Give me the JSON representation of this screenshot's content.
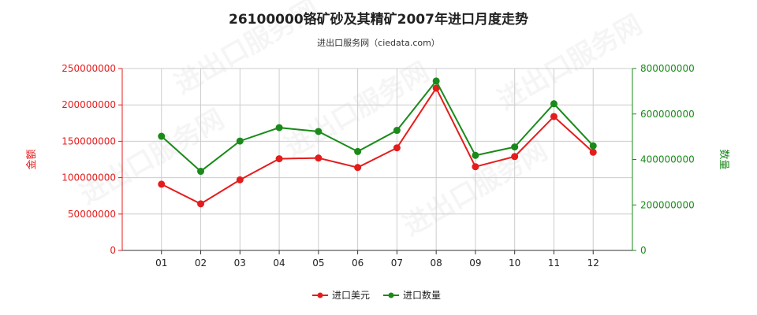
{
  "title": "26100000铬矿砂及其精矿2007年进口月度走势",
  "subtitle": "进出口服务网（ciedata.com）",
  "watermark": "进出口服务网",
  "colors": {
    "left_axis": "#e51c1c",
    "right_axis": "#1a8a1a",
    "grid": "#cccccc"
  },
  "chart_data": {
    "type": "line",
    "categories": [
      "01",
      "02",
      "03",
      "04",
      "05",
      "06",
      "07",
      "08",
      "09",
      "10",
      "11",
      "12"
    ],
    "y_left": {
      "label": "金额",
      "range": [
        0,
        250000000
      ],
      "ticks": [
        "0",
        "50000000",
        "100000000",
        "150000000",
        "200000000",
        "250000000"
      ]
    },
    "y_right": {
      "label": "数量",
      "range": [
        0,
        800000000
      ],
      "ticks": [
        "0",
        "200000000",
        "400000000",
        "600000000",
        "800000000"
      ]
    },
    "series": [
      {
        "name": "进口美元",
        "axis": "left",
        "color": "#e51c1c",
        "values": [
          91000000,
          64000000,
          97000000,
          126000000,
          127000000,
          114000000,
          141000000,
          223000000,
          115000000,
          129000000,
          184000000,
          135000000
        ]
      },
      {
        "name": "进口数量",
        "axis": "right",
        "color": "#1a8a1a",
        "values": [
          502000000,
          348000000,
          481000000,
          540000000,
          523000000,
          435000000,
          528000000,
          745000000,
          418000000,
          455000000,
          645000000,
          460000000
        ]
      }
    ],
    "grid": true,
    "legend_position": "bottom-center"
  }
}
